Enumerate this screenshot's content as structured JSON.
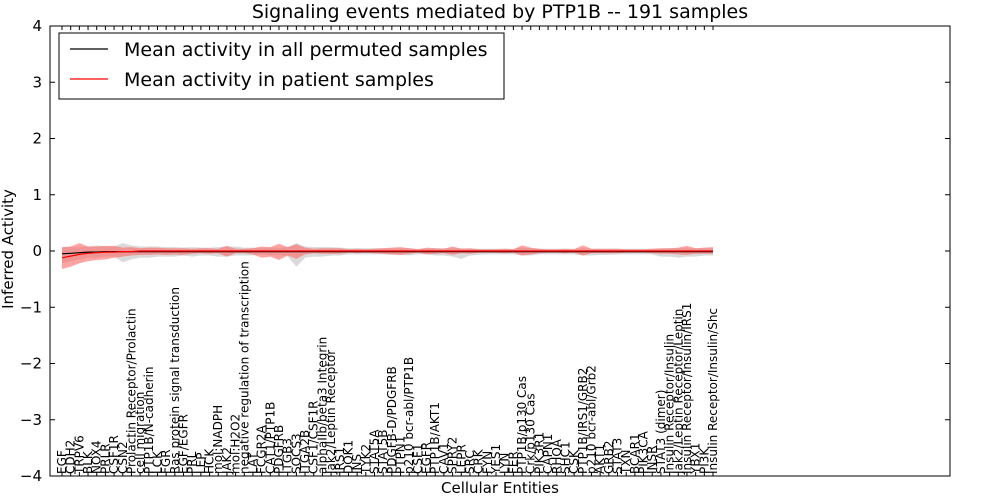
{
  "chart_data": {
    "type": "line",
    "title": "Signaling events mediated by PTP1B -- 191 samples",
    "xlabel": "Cellular Entities",
    "ylabel": "Inferred Activity",
    "ylim": [
      -4,
      4
    ],
    "yticks": [
      "4",
      "3",
      "2",
      "1",
      "0",
      "−1",
      "−2",
      "−3",
      "−4"
    ],
    "ytick_values": [
      4,
      3,
      2,
      1,
      0,
      -1,
      -2,
      -3,
      -4
    ],
    "grid": false,
    "legend_position": "top-left",
    "categories": [
      "EGF",
      "CDH2",
      "TRPV6",
      "BLK",
      "NOX4",
      "PRLR",
      "CSF1R",
      "CSN2",
      "Prolactin Receptor/Prolactin",
      "cell migration",
      "PTP1B/N-cadherin",
      "LCK",
      "FGR",
      "Ras protein signal transduction",
      "EGF/EGFR",
      "PRL",
      "LEP",
      "HCK",
      "mol:NADPH",
      "JAK2",
      "mol:H2O2",
      "negative regulation of transcription",
      "LAT",
      "FCGR2A",
      "CAT1/PTP1B",
      "PDGFRB",
      "ITGB3",
      "SOCS3",
      "ITGA2B",
      "CSF1/CSF1R",
      "alphaIIb/beta3 Integrin",
      "Jak2/Leptin Receptor",
      "IRS1",
      "DOK1",
      "INS",
      "TYK2",
      "STAT5A",
      "STAT5B",
      "PDGFB-D/PDGFRB",
      "PTPN1",
      "p210 bcr-abl/PTP1B",
      "CSF1",
      "EGFR",
      "PTP1B/AKT1",
      "CAV1",
      "SPRY2",
      "LEPR",
      "SRC",
      "CRK",
      "FYN",
      "YES1",
      "LYN",
      "FER",
      "PTP1B/p130 Cas",
      "Crk/p130 Cas",
      "PIK3R1",
      "CAPN1",
      "RHOA",
      "SHC1",
      "CSK",
      "PTP1B/IRS1/GRB2",
      "p210 bcr-abl/Grb2",
      "AKT1",
      "GRB2",
      "STAT3",
      "TXN",
      "BCAR1",
      "PIK3CA",
      "INSR",
      "STAT3 (dimer)",
      "Insulin Receptor/Insulin",
      "Jak2/Leptin Receptor/Leptin",
      "Insulin Receptor/Insulin/IRS1",
      "YBX1",
      "PI3K",
      "Insulin Receptor/Insulin/Shc"
    ],
    "series": [
      {
        "name": "Mean activity in all permuted samples",
        "color": "#000000",
        "values": [
          -0.05,
          -0.04,
          -0.03,
          -0.02,
          -0.02,
          -0.01,
          -0.01,
          -0.01,
          -0.01,
          -0.01,
          -0.01,
          -0.01,
          -0.01,
          -0.01,
          -0.01,
          -0.01,
          -0.01,
          -0.01,
          -0.01,
          -0.01,
          -0.01,
          -0.01,
          -0.01,
          -0.01,
          -0.01,
          -0.01,
          -0.01,
          -0.01,
          -0.01,
          -0.01,
          -0.01,
          -0.01,
          -0.01,
          -0.01,
          -0.01,
          -0.01,
          -0.01,
          -0.01,
          -0.01,
          -0.01,
          -0.01,
          -0.01,
          -0.01,
          -0.01,
          -0.01,
          -0.01,
          -0.01,
          -0.01,
          -0.01,
          -0.01,
          -0.01,
          -0.01,
          -0.01,
          -0.01,
          -0.01,
          -0.01,
          -0.01,
          -0.01,
          -0.01,
          -0.01,
          -0.01,
          -0.01,
          -0.01,
          -0.01,
          -0.01,
          -0.01,
          -0.01,
          -0.01,
          -0.01,
          -0.01,
          -0.01,
          -0.01,
          -0.01,
          -0.01,
          -0.01,
          -0.01
        ]
      },
      {
        "name": "Mean activity in patient samples",
        "color": "#ff0000",
        "values": [
          -0.12,
          -0.09,
          -0.06,
          -0.04,
          -0.03,
          -0.02,
          -0.02,
          -0.01,
          -0.01,
          0.0,
          0.0,
          0.0,
          0.0,
          0.0,
          0.0,
          0.0,
          0.0,
          0.0,
          0.0,
          0.0,
          0.0,
          0.0,
          0.0,
          0.0,
          0.0,
          0.0,
          0.0,
          0.0,
          0.0,
          0.0,
          0.0,
          0.0,
          0.0,
          0.0,
          0.0,
          0.0,
          0.0,
          0.0,
          0.0,
          0.0,
          0.0,
          0.0,
          0.0,
          0.0,
          0.0,
          0.0,
          0.0,
          0.0,
          0.0,
          0.0,
          0.0,
          0.0,
          0.0,
          0.0,
          0.0,
          0.0,
          0.0,
          0.0,
          0.0,
          0.0,
          0.0,
          0.0,
          0.0,
          0.0,
          0.0,
          0.0,
          0.0,
          0.0,
          0.0,
          0.0,
          0.0,
          0.0,
          0.0,
          0.0,
          0.0,
          0.0
        ]
      }
    ],
    "bands": [
      {
        "name": "permuted samples spread",
        "color": "#bbbbbb",
        "upper": [
          0.06,
          0.07,
          0.07,
          0.08,
          0.1,
          0.08,
          0.08,
          0.14,
          0.1,
          0.08,
          0.08,
          0.08,
          0.07,
          0.07,
          0.06,
          0.07,
          0.06,
          0.06,
          0.07,
          0.08,
          0.08,
          0.06,
          0.06,
          0.05,
          0.06,
          0.06,
          0.07,
          0.14,
          0.08,
          0.07,
          0.07,
          0.07,
          0.06,
          0.05,
          0.05,
          0.05,
          0.05,
          0.05,
          0.05,
          0.05,
          0.05,
          0.04,
          0.04,
          0.05,
          0.05,
          0.05,
          0.05,
          0.04,
          0.04,
          0.04,
          0.04,
          0.04,
          0.04,
          0.06,
          0.05,
          0.04,
          0.04,
          0.04,
          0.04,
          0.04,
          0.05,
          0.04,
          0.04,
          0.04,
          0.04,
          0.04,
          0.04,
          0.04,
          0.04,
          0.04,
          0.05,
          0.05,
          0.05,
          0.05,
          0.05,
          0.05
        ],
        "lower": [
          -0.22,
          -0.18,
          -0.15,
          -0.12,
          -0.12,
          -0.1,
          -0.1,
          -0.2,
          -0.15,
          -0.12,
          -0.12,
          -0.1,
          -0.1,
          -0.1,
          -0.08,
          -0.1,
          -0.08,
          -0.08,
          -0.1,
          -0.1,
          -0.08,
          -0.08,
          -0.08,
          -0.06,
          -0.08,
          -0.08,
          -0.1,
          -0.28,
          -0.12,
          -0.1,
          -0.1,
          -0.08,
          -0.08,
          -0.06,
          -0.06,
          -0.06,
          -0.06,
          -0.06,
          -0.07,
          -0.07,
          -0.08,
          -0.06,
          -0.06,
          -0.08,
          -0.08,
          -0.1,
          -0.14,
          -0.08,
          -0.07,
          -0.06,
          -0.06,
          -0.06,
          -0.06,
          -0.08,
          -0.08,
          -0.06,
          -0.06,
          -0.06,
          -0.06,
          -0.06,
          -0.08,
          -0.08,
          -0.07,
          -0.07,
          -0.06,
          -0.06,
          -0.06,
          -0.06,
          -0.06,
          -0.1,
          -0.1,
          -0.12,
          -0.1,
          -0.1,
          -0.08,
          -0.08
        ]
      },
      {
        "name": "patient samples spread",
        "color": "#ff6666",
        "upper": [
          0.07,
          0.08,
          0.14,
          0.08,
          0.08,
          0.09,
          0.09,
          0.06,
          0.07,
          0.05,
          0.06,
          0.06,
          0.05,
          0.05,
          0.05,
          0.04,
          0.05,
          0.05,
          0.04,
          0.09,
          0.04,
          0.04,
          0.05,
          0.08,
          0.07,
          0.13,
          0.07,
          0.12,
          0.06,
          0.04,
          0.05,
          0.05,
          0.05,
          0.03,
          0.04,
          0.03,
          0.04,
          0.05,
          0.06,
          0.07,
          0.05,
          0.03,
          0.06,
          0.05,
          0.04,
          0.08,
          0.04,
          0.05,
          0.03,
          0.03,
          0.03,
          0.04,
          0.03,
          0.1,
          0.06,
          0.04,
          0.03,
          0.03,
          0.04,
          0.03,
          0.1,
          0.04,
          0.04,
          0.04,
          0.04,
          0.03,
          0.03,
          0.03,
          0.04,
          0.05,
          0.05,
          0.06,
          0.09,
          0.05,
          0.06,
          0.07
        ],
        "lower": [
          -0.32,
          -0.28,
          -0.22,
          -0.18,
          -0.16,
          -0.15,
          -0.12,
          -0.1,
          -0.08,
          -0.07,
          -0.07,
          -0.06,
          -0.07,
          -0.06,
          -0.07,
          -0.05,
          -0.04,
          -0.05,
          -0.04,
          -0.1,
          -0.04,
          -0.04,
          -0.06,
          -0.12,
          -0.1,
          -0.16,
          -0.08,
          -0.14,
          -0.06,
          -0.04,
          -0.05,
          -0.05,
          -0.05,
          -0.03,
          -0.04,
          -0.03,
          -0.04,
          -0.05,
          -0.06,
          -0.07,
          -0.05,
          -0.03,
          -0.06,
          -0.05,
          -0.04,
          -0.07,
          -0.04,
          -0.05,
          -0.03,
          -0.03,
          -0.03,
          -0.04,
          -0.03,
          -0.08,
          -0.06,
          -0.04,
          -0.03,
          -0.03,
          -0.04,
          -0.03,
          -0.08,
          -0.04,
          -0.04,
          -0.04,
          -0.04,
          -0.03,
          -0.03,
          -0.03,
          -0.04,
          -0.05,
          -0.05,
          -0.06,
          -0.07,
          -0.05,
          -0.05,
          -0.05
        ]
      }
    ]
  }
}
